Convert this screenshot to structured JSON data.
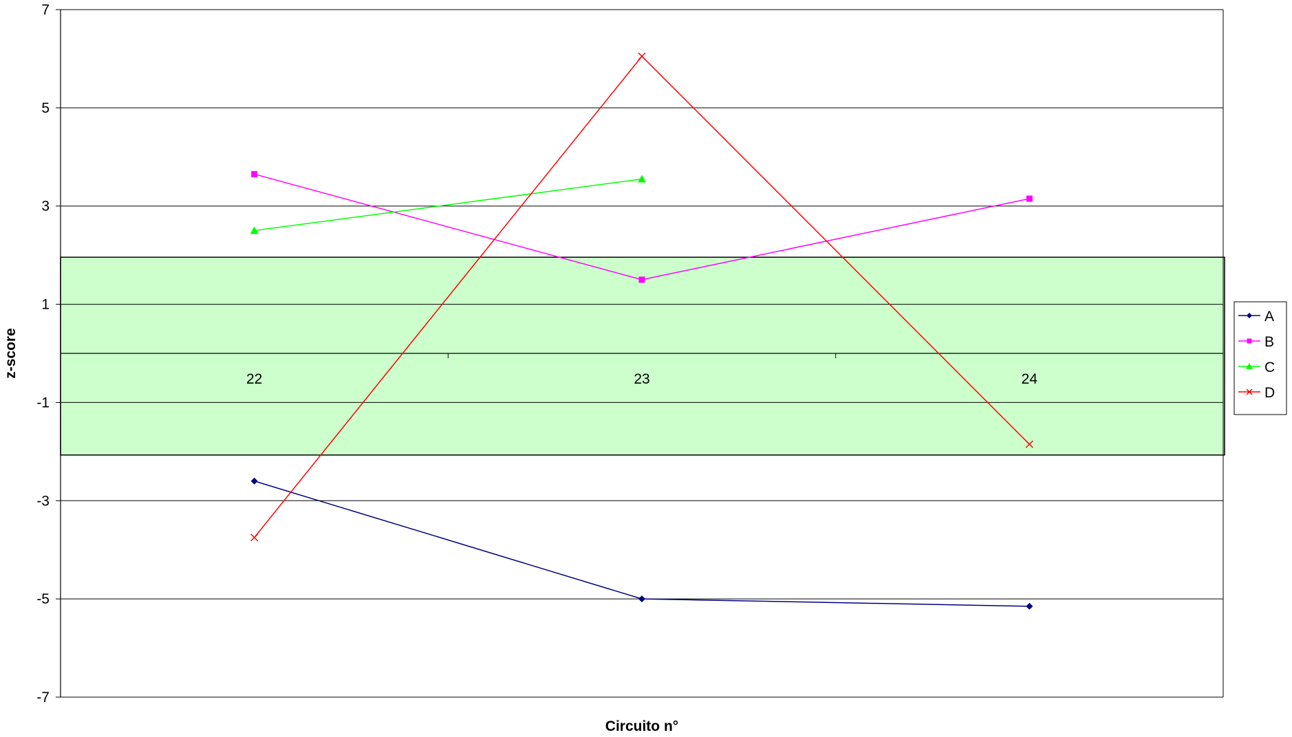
{
  "chart_data": {
    "type": "line",
    "title": "",
    "xlabel": "Circuito n°",
    "ylabel": "z-score",
    "categories": [
      "22",
      "23",
      "24"
    ],
    "ylim": [
      -7,
      7
    ],
    "yticks": [
      "7",
      "5",
      "3",
      "1",
      "-1",
      "-3",
      "-5",
      "-7"
    ],
    "grid": true,
    "legend_position": "right",
    "acceptance_band": {
      "from": -2,
      "to": 2,
      "color": "#ccffcc"
    },
    "series": [
      {
        "name": "A",
        "color": "#000080",
        "marker": "diamond",
        "values": [
          -2.6,
          -5.0,
          -5.15
        ]
      },
      {
        "name": "B",
        "color": "#ff00ff",
        "marker": "square",
        "values": [
          3.65,
          1.5,
          3.15
        ]
      },
      {
        "name": "C",
        "color": "#00ff00",
        "marker": "triangle",
        "values": [
          2.5,
          3.55,
          null
        ]
      },
      {
        "name": "D",
        "color": "#ff0000",
        "marker": "x",
        "values": [
          -3.75,
          6.05,
          -1.85
        ]
      }
    ]
  }
}
